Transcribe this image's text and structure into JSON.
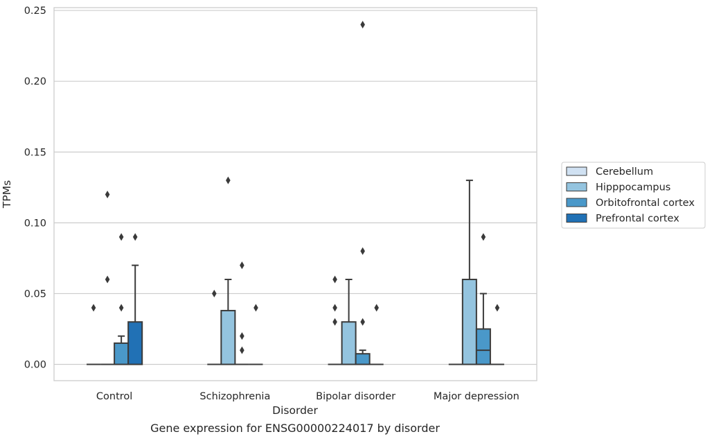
{
  "chart_data": {
    "type": "box",
    "caption": "Gene expression for ENSG00000224017 by disorder",
    "xlabel": "Disorder",
    "ylabel": "TPMs",
    "ylim": [
      -0.0115,
      0.252
    ],
    "yticks": [
      0.0,
      0.05,
      0.1,
      0.15,
      0.2,
      0.25
    ],
    "ytick_labels": [
      "0.00",
      "0.05",
      "0.10",
      "0.15",
      "0.20",
      "0.25"
    ],
    "grid": "horizontal",
    "legend_position": "right",
    "categories": [
      "Control",
      "Schizophrenia",
      "Bipolar disorder",
      "Major depression"
    ],
    "series": [
      {
        "name": "Cerebellum",
        "color": "#d0e1f2",
        "boxes": [
          {
            "q1": 0.0,
            "median": 0.0,
            "q3": 0.0,
            "whislo": 0.0,
            "whishi": 0.0,
            "fliers": [
              0.04
            ]
          },
          {
            "q1": 0.0,
            "median": 0.0,
            "q3": 0.0,
            "whislo": 0.0,
            "whishi": 0.0,
            "fliers": [
              0.05
            ]
          },
          {
            "q1": 0.0,
            "median": 0.0,
            "q3": 0.0,
            "whislo": 0.0,
            "whishi": 0.0,
            "fliers": [
              0.03,
              0.04,
              0.06
            ]
          },
          {
            "q1": 0.0,
            "median": 0.0,
            "q3": 0.0,
            "whislo": 0.0,
            "whishi": 0.0,
            "fliers": []
          }
        ]
      },
      {
        "name": "Hipppocampus",
        "color": "#94c4df",
        "boxes": [
          {
            "q1": 0.0,
            "median": 0.0,
            "q3": 0.0,
            "whislo": 0.0,
            "whishi": 0.0,
            "fliers": [
              0.06,
              0.12
            ]
          },
          {
            "q1": 0.0,
            "median": 0.0,
            "q3": 0.038,
            "whislo": 0.0,
            "whishi": 0.06,
            "fliers": [
              0.13
            ]
          },
          {
            "q1": 0.0,
            "median": 0.0,
            "q3": 0.03,
            "whislo": 0.0,
            "whishi": 0.06,
            "fliers": []
          },
          {
            "q1": 0.0,
            "median": 0.0,
            "q3": 0.06,
            "whislo": 0.0,
            "whishi": 0.13,
            "fliers": []
          }
        ]
      },
      {
        "name": "Orbitofrontal cortex",
        "color": "#4a98c9",
        "boxes": [
          {
            "q1": 0.0,
            "median": 0.0,
            "q3": 0.015,
            "whislo": 0.0,
            "whishi": 0.02,
            "fliers": [
              0.04,
              0.09
            ]
          },
          {
            "q1": 0.0,
            "median": 0.0,
            "q3": 0.0,
            "whislo": 0.0,
            "whishi": 0.0,
            "fliers": [
              0.01,
              0.02,
              0.07
            ]
          },
          {
            "q1": 0.0,
            "median": 0.0,
            "q3": 0.0075,
            "whislo": 0.0,
            "whishi": 0.01,
            "fliers": [
              0.03,
              0.08,
              0.24
            ]
          },
          {
            "q1": 0.0,
            "median": 0.01,
            "q3": 0.025,
            "whislo": 0.0,
            "whishi": 0.05,
            "fliers": [
              0.09
            ]
          }
        ]
      },
      {
        "name": "Prefrontal cortex",
        "color": "#2171b5",
        "boxes": [
          {
            "q1": 0.0,
            "median": 0.0,
            "q3": 0.03,
            "whislo": 0.0,
            "whishi": 0.07,
            "fliers": [
              0.09
            ]
          },
          {
            "q1": 0.0,
            "median": 0.0,
            "q3": 0.0,
            "whislo": 0.0,
            "whishi": 0.0,
            "fliers": [
              0.04
            ]
          },
          {
            "q1": 0.0,
            "median": 0.0,
            "q3": 0.0,
            "whislo": 0.0,
            "whishi": 0.0,
            "fliers": [
              0.04
            ]
          },
          {
            "q1": 0.0,
            "median": 0.0,
            "q3": 0.0,
            "whislo": 0.0,
            "whishi": 0.0,
            "fliers": [
              0.04
            ]
          }
        ]
      }
    ]
  }
}
